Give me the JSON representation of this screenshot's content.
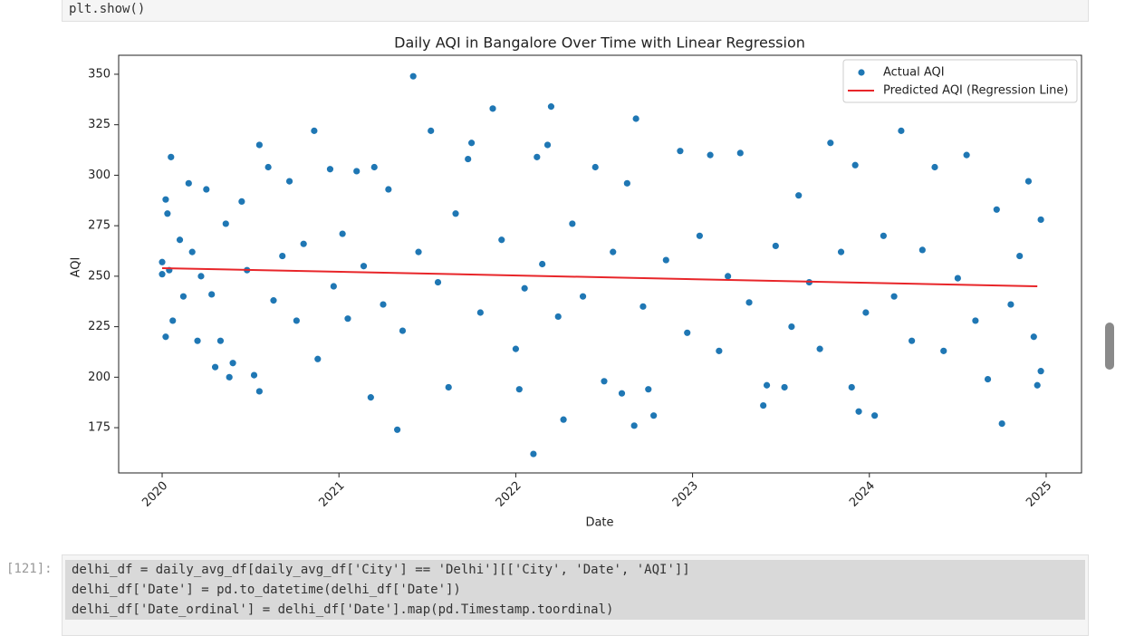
{
  "top_cell": {
    "code": "plt.show()"
  },
  "chart_data": {
    "type": "scatter",
    "title": "Daily AQI in Bangalore Over Time with Linear Regression",
    "x_label": "Date",
    "y_label": "AQI",
    "xlim": [
      2019.754,
      2025.2
    ],
    "xticks": [
      2020,
      2021,
      2022,
      2023,
      2024,
      2025
    ],
    "ylim": [
      152.6,
      359.4
    ],
    "yticks": [
      175,
      200,
      225,
      250,
      275,
      300,
      325,
      350
    ],
    "grid": false,
    "legend": "upper right",
    "series": [
      {
        "name": "Actual AQI",
        "type": "scatter",
        "color": "#1f77b4",
        "x": [
          2020.0,
          2020.0,
          2020.02,
          2020.02,
          2020.03,
          2020.04,
          2020.05,
          2020.06,
          2020.1,
          2020.12,
          2020.15,
          2020.17,
          2020.2,
          2020.22,
          2020.25,
          2020.28,
          2020.3,
          2020.33,
          2020.36,
          2020.38,
          2020.4,
          2020.45,
          2020.48,
          2020.52,
          2020.55,
          2020.55,
          2020.6,
          2020.63,
          2020.68,
          2020.72,
          2020.76,
          2020.8,
          2020.86,
          2020.88,
          2020.95,
          2020.97,
          2021.02,
          2021.05,
          2021.1,
          2021.14,
          2021.18,
          2021.2,
          2021.25,
          2021.28,
          2021.33,
          2021.36,
          2021.42,
          2021.45,
          2021.52,
          2021.56,
          2021.62,
          2021.66,
          2021.73,
          2021.75,
          2021.8,
          2021.87,
          2021.92,
          2022.0,
          2022.02,
          2022.05,
          2022.1,
          2022.12,
          2022.15,
          2022.18,
          2022.2,
          2022.24,
          2022.27,
          2022.32,
          2022.38,
          2022.45,
          2022.5,
          2022.55,
          2022.6,
          2022.63,
          2022.67,
          2022.68,
          2022.72,
          2022.75,
          2022.78,
          2022.85,
          2022.93,
          2022.97,
          2023.04,
          2023.1,
          2023.15,
          2023.2,
          2023.27,
          2023.32,
          2023.4,
          2023.42,
          2023.47,
          2023.52,
          2023.56,
          2023.6,
          2023.66,
          2023.72,
          2023.78,
          2023.84,
          2023.9,
          2023.92,
          2023.94,
          2023.98,
          2024.03,
          2024.08,
          2024.14,
          2024.18,
          2024.24,
          2024.3,
          2024.37,
          2024.42,
          2024.5,
          2024.55,
          2024.6,
          2024.67,
          2024.72,
          2024.75,
          2024.8,
          2024.85,
          2024.9,
          2024.93,
          2024.95,
          2024.97,
          2024.97
        ],
        "values": [
          257,
          251,
          288,
          220,
          281,
          253,
          309,
          228,
          268,
          240,
          296,
          262,
          218,
          250,
          293,
          241,
          205,
          218,
          276,
          200,
          207,
          287,
          253,
          201,
          193,
          315,
          304,
          238,
          260,
          297,
          228,
          266,
          322,
          209,
          303,
          245,
          271,
          229,
          302,
          255,
          190,
          304,
          236,
          293,
          174,
          223,
          349,
          262,
          322,
          247,
          195,
          281,
          308,
          316,
          232,
          333,
          268,
          214,
          194,
          244,
          162,
          309,
          256,
          315,
          334,
          230,
          179,
          276,
          240,
          304,
          198,
          262,
          192,
          296,
          176,
          328,
          235,
          194,
          181,
          258,
          312,
          222,
          270,
          310,
          213,
          250,
          311,
          237,
          186,
          196,
          265,
          195,
          225,
          290,
          247,
          214,
          316,
          262,
          195,
          305,
          183,
          232,
          181,
          270,
          240,
          322,
          218,
          263,
          304,
          213,
          249,
          310,
          228,
          199,
          283,
          177,
          236,
          260,
          297,
          220,
          196,
          203,
          278
        ]
      },
      {
        "name": "Predicted AQI (Regression Line)",
        "type": "line",
        "color": "#e8262a",
        "x": [
          2020.0,
          2024.95
        ],
        "values": [
          254,
          245
        ]
      }
    ]
  },
  "bottom_cell": {
    "prompt": "[121]:",
    "lines": [
      "delhi_df = daily_avg_df[daily_avg_df['City'] == 'Delhi'][['City', 'Date', 'AQI']]",
      "delhi_df['Date'] = pd.to_datetime(delhi_df['Date'])",
      "delhi_df['Date_ordinal'] = delhi_df['Date'].map(pd.Timestamp.toordinal)"
    ]
  }
}
